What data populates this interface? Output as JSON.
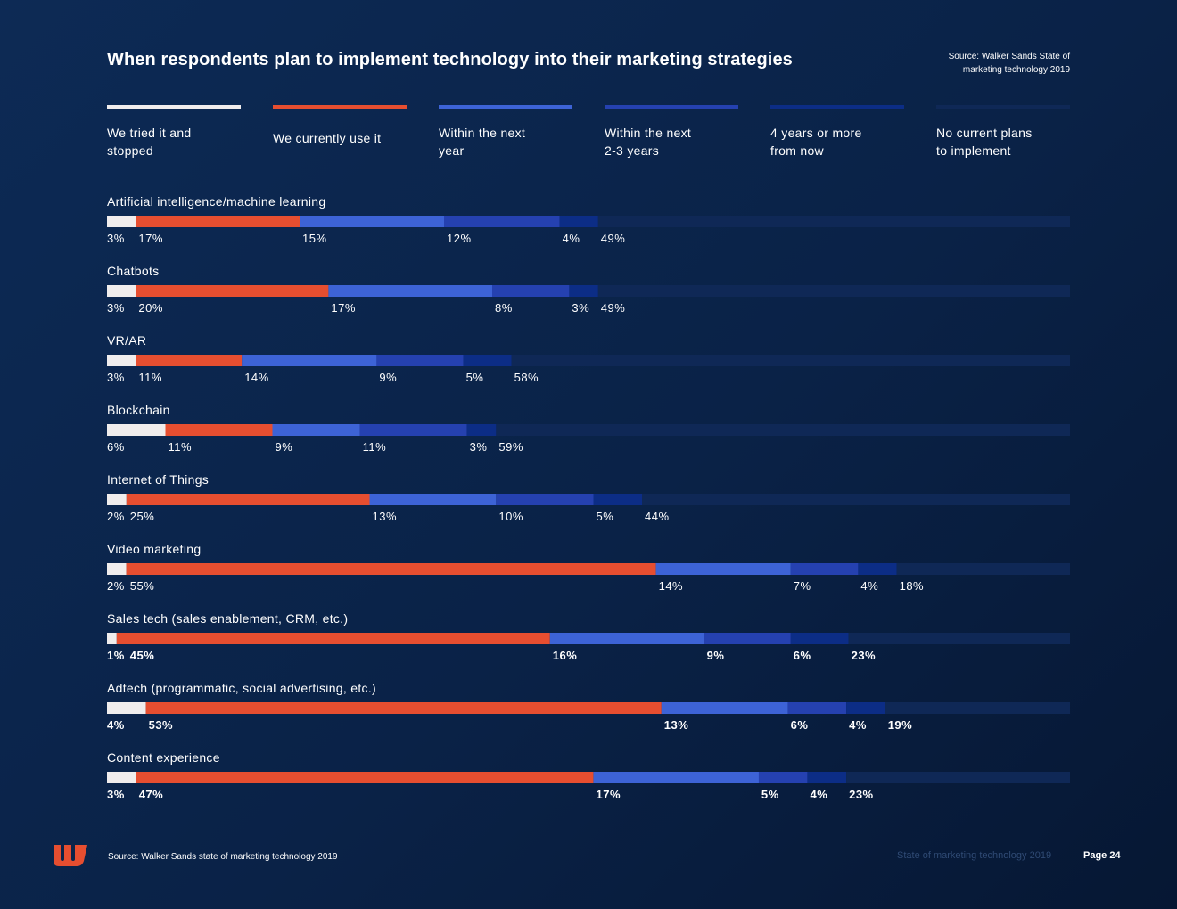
{
  "title": "When respondents plan to implement technology into their marketing strategies",
  "source_top": [
    "Source: Walker Sands State of",
    "marketing technology 2019"
  ],
  "legend": [
    {
      "lines": [
        "We tried it and",
        "stopped"
      ],
      "color": "#f0eded"
    },
    {
      "lines": [
        "We currently use it"
      ],
      "color": "#e64e30"
    },
    {
      "lines": [
        "Within the next",
        "year"
      ],
      "color": "#3d63d6"
    },
    {
      "lines": [
        "Within the next",
        "2-3 years"
      ],
      "color": "#2541b0"
    },
    {
      "lines": [
        "4 years or more",
        "from now"
      ],
      "color": "#0c2d86"
    },
    {
      "lines": [
        "No current plans",
        "to implement"
      ],
      "color": "#0f2856"
    }
  ],
  "chart_data": {
    "type": "bar",
    "orientation": "horizontal",
    "stacked": true,
    "unit": "%",
    "series": [
      "We tried it and stopped",
      "We currently use it",
      "Within the next year",
      "Within the next 2-3 years",
      "4 years or more from now",
      "No current plans to implement"
    ],
    "categories": [
      "Artificial intelligence/machine learning",
      "Chatbots",
      "VR/AR",
      "Blockchain",
      "Internet of Things",
      "Video marketing",
      "Sales tech (sales enablement, CRM, etc.)",
      "Adtech (programmatic, social advertising, etc.)",
      "Content experience"
    ],
    "values": [
      [
        3,
        17,
        15,
        12,
        4,
        49
      ],
      [
        3,
        20,
        17,
        8,
        3,
        49
      ],
      [
        3,
        11,
        14,
        9,
        5,
        58
      ],
      [
        6,
        11,
        9,
        11,
        3,
        59
      ],
      [
        2,
        25,
        13,
        10,
        5,
        44
      ],
      [
        2,
        55,
        14,
        7,
        4,
        18
      ],
      [
        1,
        45,
        16,
        9,
        6,
        23
      ],
      [
        4,
        53,
        13,
        6,
        4,
        19
      ],
      [
        3,
        47,
        17,
        5,
        4,
        23
      ]
    ],
    "bold_labels": [
      false,
      false,
      false,
      false,
      false,
      false,
      true,
      true,
      true
    ]
  },
  "footer": {
    "source": "Source: Walker Sands state of marketing technology 2019",
    "report_title": "State of marketing technology 2019",
    "page": "Page 24"
  },
  "logo": {
    "color": "#e64e30"
  }
}
